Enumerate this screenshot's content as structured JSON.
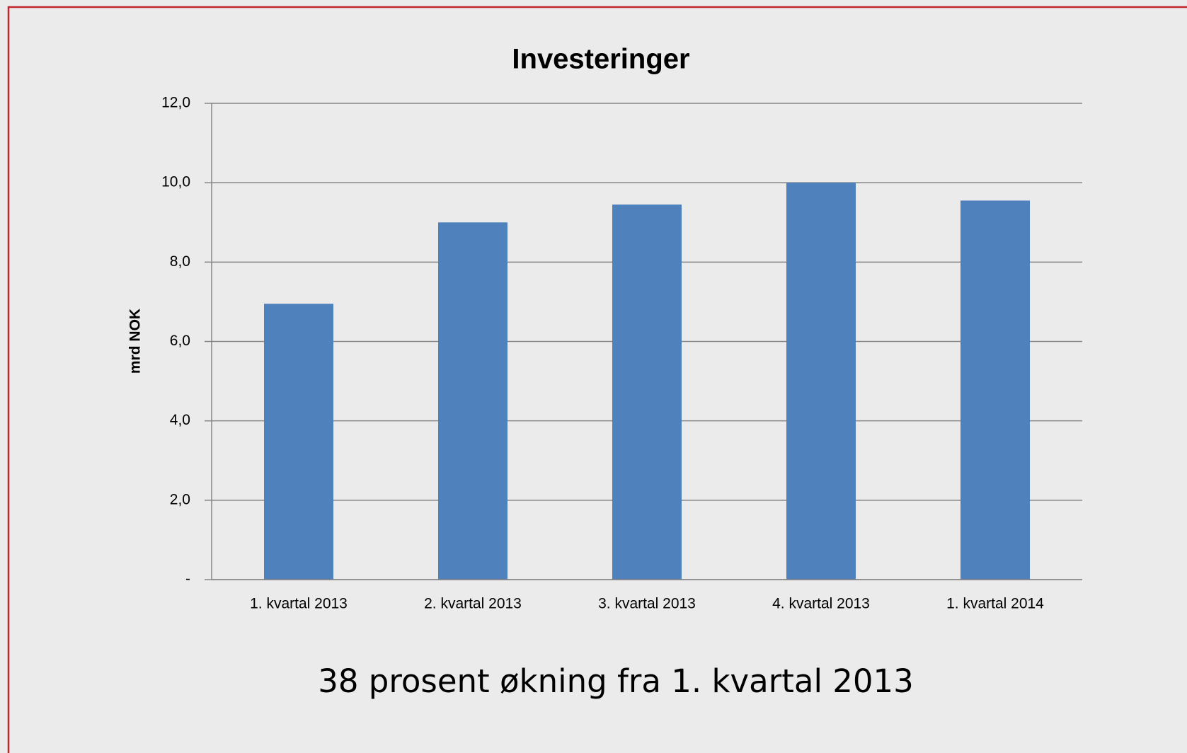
{
  "chart_data": {
    "type": "bar",
    "title": "Investeringer",
    "y_label": "mrd NOK",
    "categories": [
      "1. kvartal 2013",
      "2. kvartal 2013",
      "3. kvartal 2013",
      "4. kvartal 2013",
      "1. kvartal 2014"
    ],
    "values": [
      6.95,
      9.0,
      9.45,
      10.0,
      9.55
    ],
    "color": "#4f81bd",
    "ylim": [
      0,
      12
    ],
    "yticks": [
      {
        "value": 0,
        "label": "-"
      },
      {
        "value": 2,
        "label": "2,0"
      },
      {
        "value": 4,
        "label": "4,0"
      },
      {
        "value": 6,
        "label": "6,0"
      },
      {
        "value": 8,
        "label": "8,0"
      },
      {
        "value": 10,
        "label": "10,0"
      },
      {
        "value": 12,
        "label": "12,0"
      }
    ],
    "grid": true,
    "annotation": "38 prosent økning fra 1. kvartal 2013"
  }
}
